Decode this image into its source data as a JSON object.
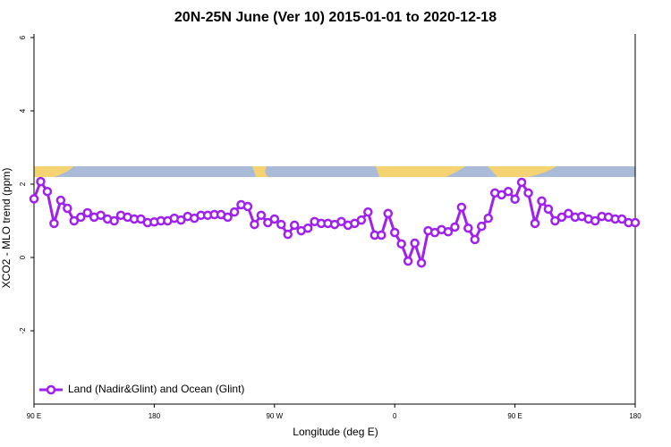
{
  "chart_data": {
    "type": "line",
    "title": "20N-25N June (Ver 10)   2015-01-01 to 2020-12-18",
    "x_label": "Longitude (deg E)",
    "y_label": "XCO2 - MLO trend (ppm)",
    "x": [
      90,
      95,
      100,
      105,
      110,
      115,
      120,
      125,
      130,
      135,
      140,
      145,
      150,
      155,
      160,
      165,
      170,
      175,
      180,
      185,
      190,
      195,
      200,
      205,
      210,
      215,
      220,
      225,
      230,
      235,
      240,
      245,
      250,
      255,
      260,
      265,
      270,
      275,
      280,
      285,
      290,
      295,
      300,
      305,
      310,
      315,
      320,
      325,
      330,
      335,
      340,
      345,
      350,
      355,
      360,
      365,
      370,
      375,
      380,
      385,
      390,
      395,
      400,
      405,
      410,
      415,
      420,
      425,
      430,
      435,
      440,
      445,
      450,
      455,
      460,
      465,
      470,
      475,
      480,
      485,
      490,
      495,
      500,
      505,
      510,
      515,
      520,
      525,
      530,
      535,
      540
    ],
    "series": [
      {
        "name": "Land (Nadir&Glint) and Ocean (Glint)",
        "color": "#a020f0",
        "values": [
          1.6,
          2.07,
          1.8,
          0.93,
          1.56,
          1.34,
          1.0,
          1.1,
          1.22,
          1.1,
          1.15,
          1.05,
          1.0,
          1.15,
          1.1,
          1.05,
          1.05,
          0.95,
          0.97,
          1.0,
          1.0,
          1.07,
          1.02,
          1.12,
          1.07,
          1.15,
          1.15,
          1.17,
          1.17,
          1.1,
          1.24,
          1.44,
          1.39,
          0.9,
          1.15,
          0.95,
          1.05,
          0.9,
          0.63,
          0.88,
          0.73,
          0.8,
          0.98,
          0.93,
          0.93,
          0.9,
          0.98,
          0.88,
          0.93,
          1.02,
          1.24,
          0.61,
          0.61,
          1.2,
          0.68,
          0.37,
          -0.1,
          0.39,
          -0.15,
          0.73,
          0.68,
          0.76,
          0.7,
          0.83,
          1.37,
          0.8,
          0.49,
          0.85,
          1.07,
          1.76,
          1.71,
          1.8,
          1.59,
          2.05,
          1.76,
          0.93,
          1.54,
          1.32,
          1.0,
          1.1,
          1.2,
          1.1,
          1.12,
          1.05,
          1.0,
          1.12,
          1.1,
          1.05,
          1.05,
          0.95,
          0.95
        ]
      }
    ],
    "xlim": [
      90,
      540
    ],
    "xticks": [
      {
        "value": 90,
        "label": "90 E"
      },
      180,
      {
        "value": 270,
        "label": "90 W"
      },
      {
        "value": 360,
        "label": "0"
      },
      {
        "value": 450,
        "label": "90 E"
      },
      {
        "value": 540,
        "label": "180"
      }
    ],
    "ylim": [
      -4,
      6
    ],
    "yticks": [
      -2,
      0,
      2,
      4,
      6
    ],
    "legend": "bottom-left"
  }
}
